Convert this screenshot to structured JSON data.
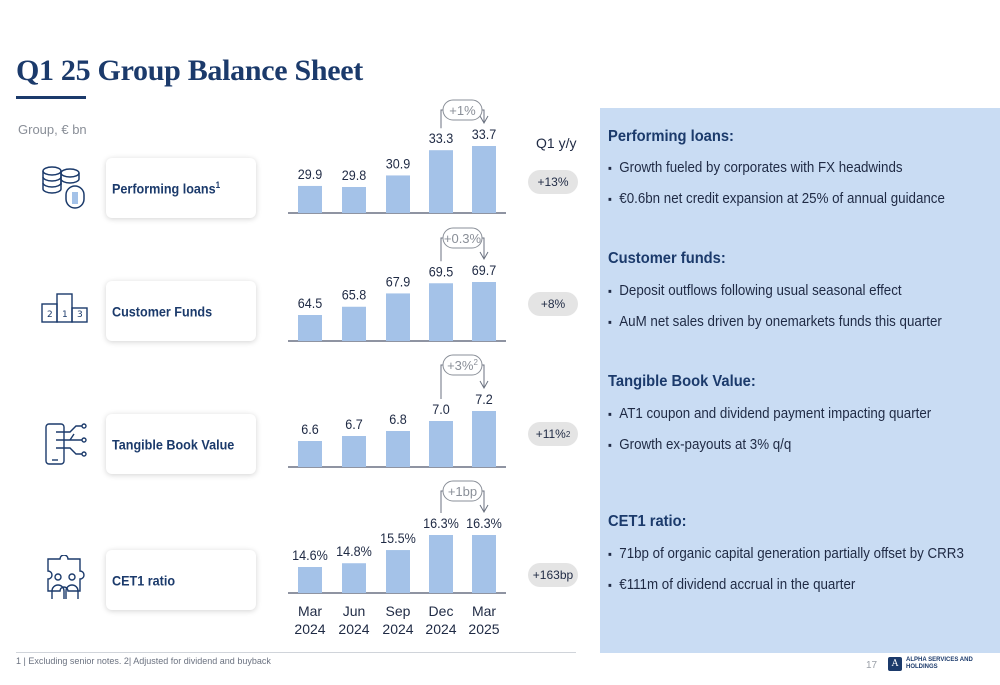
{
  "title": "Q1 25 Group Balance Sheet",
  "unit_label": "Group, € bn",
  "yoy_header": "Q1 y/y",
  "metrics": [
    {
      "label": "Performing loans",
      "sup": "1",
      "icon": "coins-icon",
      "yoy": "+13%",
      "yoy_sup": "",
      "change_label": "+1%",
      "change_sup": ""
    },
    {
      "label": "Customer Funds",
      "sup": "",
      "icon": "podium-icon",
      "yoy": "+8%",
      "yoy_sup": "",
      "change_label": "+0.3%",
      "change_sup": ""
    },
    {
      "label": "Tangible Book Value",
      "sup": "",
      "icon": "circuit-phone-icon",
      "yoy": "+11%",
      "yoy_sup": "2",
      "change_label": "+3%",
      "change_sup": "2"
    },
    {
      "label": "CET1 ratio",
      "sup": "",
      "icon": "people-puzzle-icon",
      "yoy": "+163bp",
      "yoy_sup": "",
      "change_label": "+1bp",
      "change_sup": ""
    }
  ],
  "chart_data": {
    "type": "bar",
    "categories": [
      [
        "Mar",
        "2024"
      ],
      [
        "Jun",
        "2024"
      ],
      [
        "Sep",
        "2024"
      ],
      [
        "Dec",
        "2024"
      ],
      [
        "Mar",
        "2025"
      ]
    ],
    "series": [
      {
        "name": "Performing loans",
        "values": [
          29.9,
          29.8,
          30.9,
          33.3,
          33.7
        ],
        "labels": [
          "29.9",
          "29.8",
          "30.9",
          "33.3",
          "33.7"
        ]
      },
      {
        "name": "Customer Funds",
        "values": [
          64.5,
          65.8,
          67.9,
          69.5,
          69.7
        ],
        "labels": [
          "64.5",
          "65.8",
          "67.9",
          "69.5",
          "69.7"
        ]
      },
      {
        "name": "Tangible Book Value",
        "values": [
          6.6,
          6.7,
          6.8,
          7.0,
          7.2
        ],
        "labels": [
          "6.6",
          "6.7",
          "6.8",
          "7.0",
          "7.2"
        ]
      },
      {
        "name": "CET1 ratio",
        "values": [
          14.6,
          14.8,
          15.5,
          16.3,
          16.3
        ],
        "labels": [
          "14.6%",
          "14.8%",
          "15.5%",
          "16.3%",
          "16.3%"
        ]
      }
    ],
    "bar_color": "#a4c2e8"
  },
  "panel": {
    "sections": [
      {
        "heading": "Performing loans:",
        "bullets": [
          "Growth fueled by corporates with FX headwinds",
          "€0.6bn net credit expansion at 25% of annual guidance"
        ]
      },
      {
        "heading": "Customer funds:",
        "bullets": [
          "Deposit outflows following usual seasonal effect",
          "AuM net sales driven by onemarkets funds this quarter"
        ]
      },
      {
        "heading": "Tangible Book Value:",
        "bullets": [
          "AT1 coupon and dividend payment impacting quarter",
          "Growth ex-payouts at 3% q/q"
        ]
      },
      {
        "heading": "CET1 ratio:",
        "bullets": [
          "71bp of organic capital generation partially offset by CRR3",
          "€111m of dividend accrual in the quarter"
        ]
      }
    ]
  },
  "footnote": "1 |  Excluding senior notes. 2| Adjusted for dividend and buyback",
  "page_number": "17",
  "logo_text": "ALPHA SERVICES AND HOLDINGS"
}
